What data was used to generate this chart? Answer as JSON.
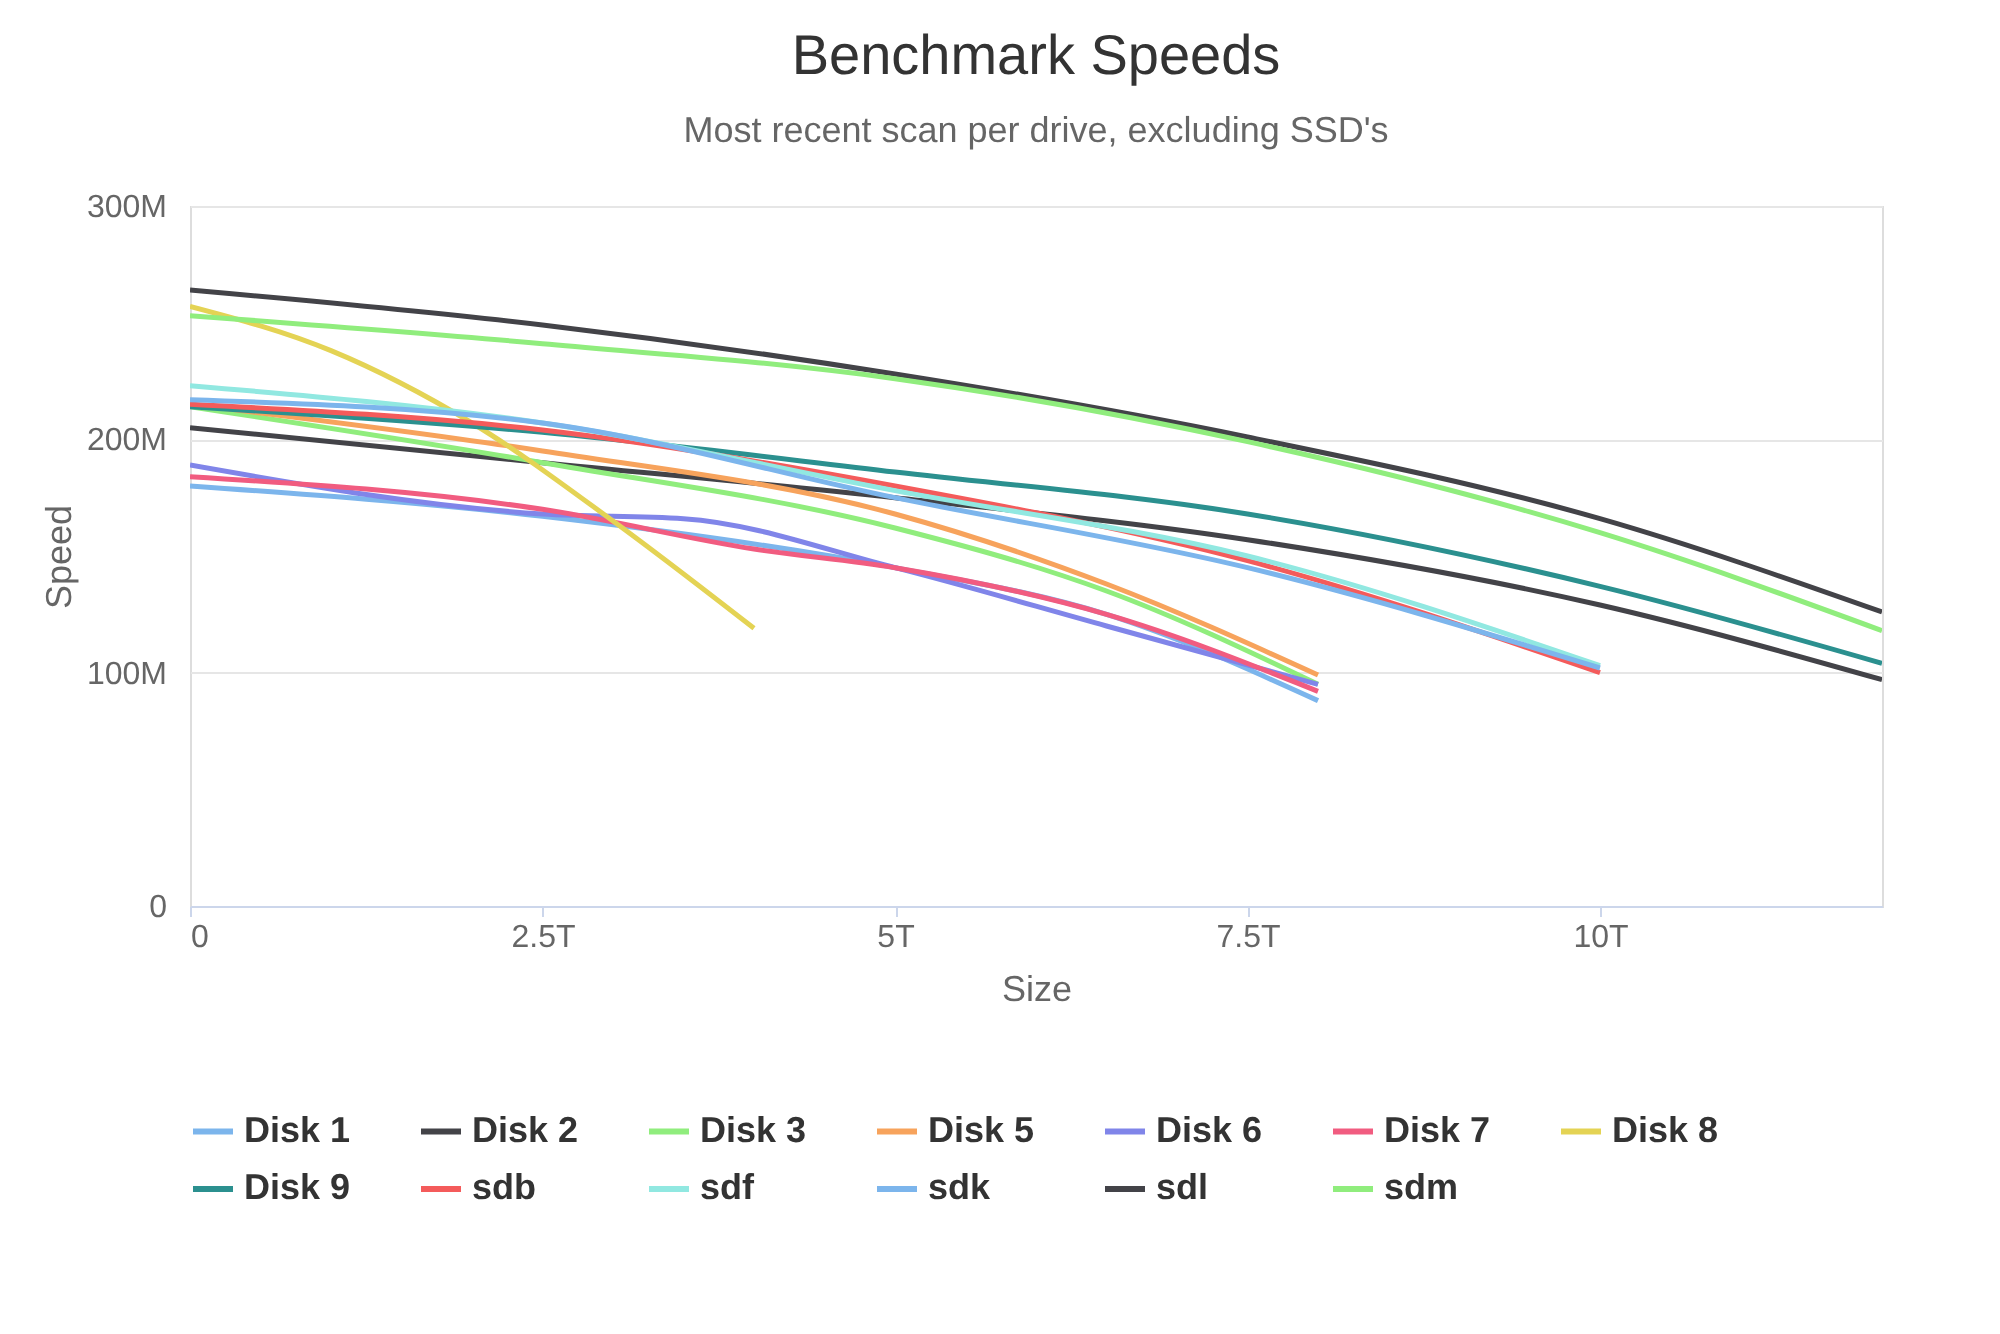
{
  "chart_data": {
    "type": "line",
    "title": "Benchmark Speeds",
    "subtitle": "Most recent scan per drive, excluding SSD's",
    "xlabel": "Size",
    "ylabel": "Speed",
    "xlim": [
      0,
      12
    ],
    "ylim": [
      0,
      300
    ],
    "xticks": [
      {
        "value": 0,
        "label": "0"
      },
      {
        "value": 2.5,
        "label": "2.5T"
      },
      {
        "value": 5,
        "label": "5T"
      },
      {
        "value": 7.5,
        "label": "7.5T"
      },
      {
        "value": 10,
        "label": "10T"
      }
    ],
    "yticks": [
      {
        "value": 0,
        "label": "0"
      },
      {
        "value": 100,
        "label": "100M"
      },
      {
        "value": 200,
        "label": "200M"
      },
      {
        "value": 300,
        "label": "300M"
      }
    ],
    "grid": "y",
    "legend": "bottom",
    "marker": "none",
    "line_style": "solid",
    "series": [
      {
        "name": "Disk 1",
        "color": "#7cb5ec",
        "x": [
          0,
          2.5,
          5,
          6.5,
          8
        ],
        "values": [
          180,
          167,
          145,
          125,
          88
        ]
      },
      {
        "name": "Disk 2",
        "color": "#434348",
        "x": [
          0,
          2.5,
          5,
          7.5,
          10,
          12
        ],
        "values": [
          205,
          190,
          175,
          157,
          129,
          97
        ]
      },
      {
        "name": "Disk 3",
        "color": "#90ed7d",
        "x": [
          0,
          2.5,
          5,
          6.5,
          8
        ],
        "values": [
          214,
          190,
          162,
          135,
          95
        ]
      },
      {
        "name": "Disk 5",
        "color": "#f7a35c",
        "x": [
          0,
          2.5,
          5,
          6.5,
          8
        ],
        "values": [
          215,
          195,
          168,
          138,
          99
        ]
      },
      {
        "name": "Disk 6",
        "color": "#8085e9",
        "x": [
          0,
          2.5,
          3.5,
          5,
          6.5,
          8
        ],
        "values": [
          189,
          168,
          166,
          145,
          120,
          95
        ]
      },
      {
        "name": "Disk 7",
        "color": "#f15c80",
        "x": [
          0,
          2.5,
          4,
          5,
          6.5,
          8
        ],
        "values": [
          184,
          170,
          153,
          145,
          125,
          92
        ]
      },
      {
        "name": "Disk 8",
        "color": "#e4d354",
        "x": [
          0,
          1,
          2,
          3,
          4
        ],
        "values": [
          257,
          238,
          207,
          165,
          119
        ]
      },
      {
        "name": "Disk 9",
        "color": "#2b908f",
        "x": [
          0,
          2.5,
          5,
          7.5,
          10,
          12
        ],
        "values": [
          214,
          203,
          186,
          168,
          137,
          104
        ]
      },
      {
        "name": "sdb",
        "color": "#f45b5b",
        "x": [
          0,
          2.5,
          5,
          7.5,
          10
        ],
        "values": [
          215,
          204,
          180,
          148,
          100
        ]
      },
      {
        "name": "sdf",
        "color": "#91e8e1",
        "x": [
          0,
          2.5,
          5,
          7.5,
          10
        ],
        "values": [
          223,
          207,
          178,
          150,
          103
        ]
      },
      {
        "name": "sdk",
        "color": "#7cb5ec",
        "x": [
          0,
          2.5,
          5,
          7.5,
          10
        ],
        "values": [
          217,
          207,
          175,
          145,
          102
        ]
      },
      {
        "name": "sdl",
        "color": "#434348",
        "x": [
          0,
          2.5,
          5,
          7.5,
          10,
          12
        ],
        "values": [
          264,
          249,
          228,
          201,
          166,
          126
        ]
      },
      {
        "name": "sdm",
        "color": "#90ed7d",
        "x": [
          0,
          2.5,
          5,
          7.5,
          10,
          12
        ],
        "values": [
          253,
          241,
          226,
          199,
          160,
          118
        ]
      }
    ]
  }
}
